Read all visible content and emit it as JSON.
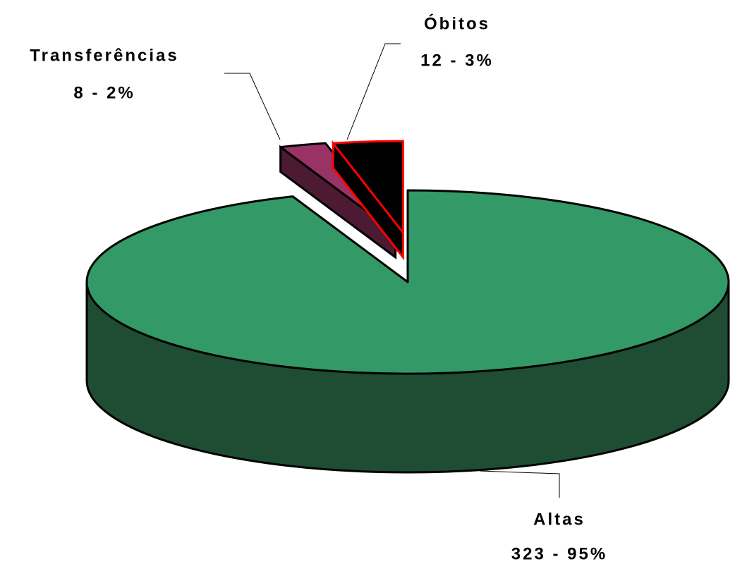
{
  "chart_data": {
    "type": "pie3d",
    "categories": [
      "Altas",
      "Transferências",
      "Óbitos"
    ],
    "values": [
      323,
      8,
      12
    ],
    "value_labels": [
      "323 - 95%",
      "8 - 2%",
      "12 - 3%"
    ],
    "colors": [
      "#339966",
      "#993366",
      "#000000"
    ],
    "side_colors": [
      "#1e4d33",
      "#4d1a33",
      "#000000"
    ],
    "edge_colors": [
      "#000000",
      "#000000",
      "#ff0000"
    ]
  }
}
